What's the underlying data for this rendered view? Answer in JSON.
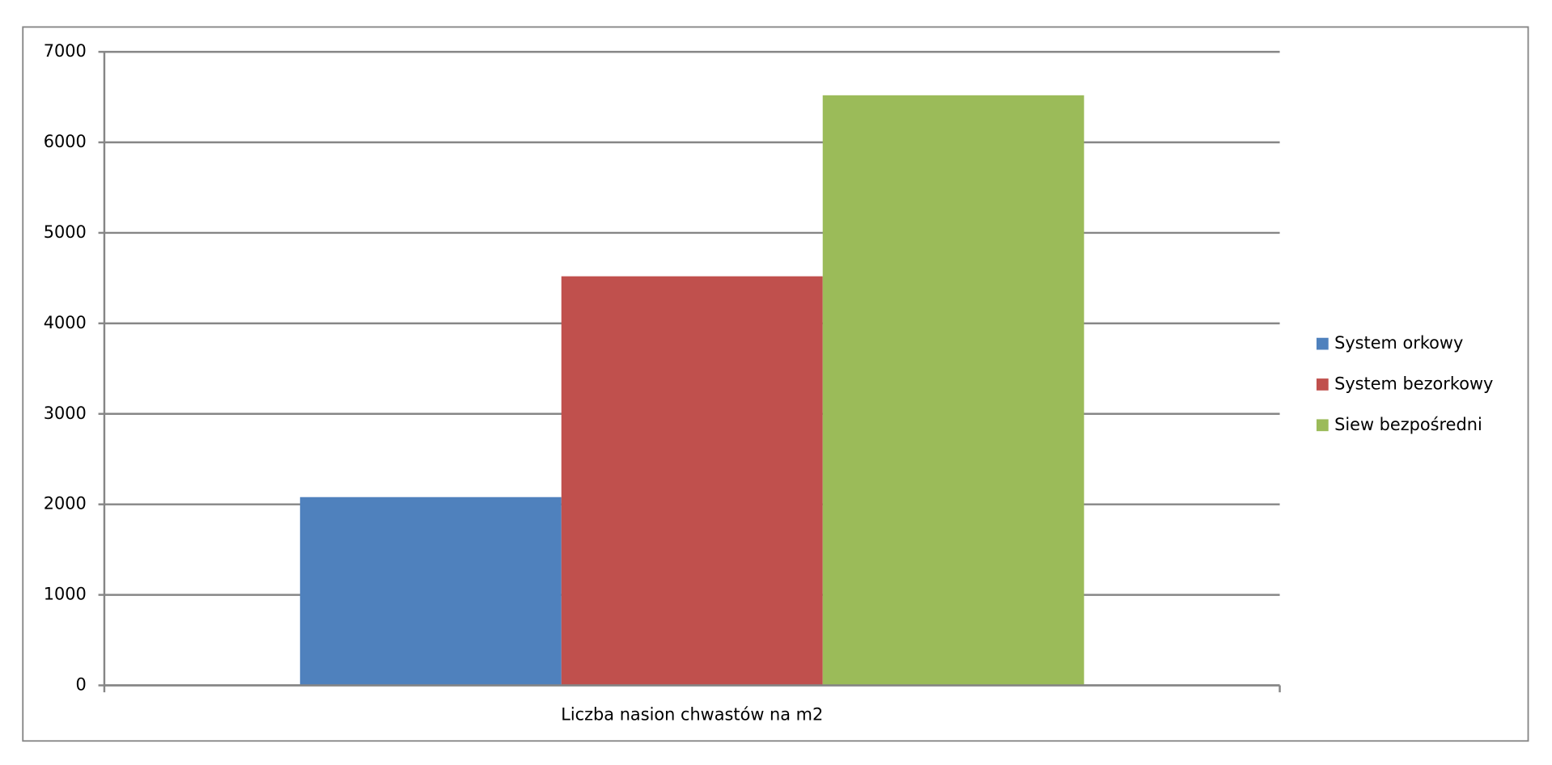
{
  "chart_data": {
    "type": "bar",
    "categories": [
      "Liczba nasion chwastów na m2"
    ],
    "series": [
      {
        "name": "System orkowy",
        "color": "#4f81bd",
        "values": [
          2080
        ]
      },
      {
        "name": "System bezorkowy",
        "color": "#c0504d",
        "values": [
          4520
        ]
      },
      {
        "name": "Siew bezpośredni",
        "color": "#9bbb59",
        "values": [
          6520
        ]
      }
    ],
    "ylim": [
      0,
      7000
    ],
    "yticks": [
      0,
      1000,
      2000,
      3000,
      4000,
      5000,
      6000,
      7000
    ],
    "grid": true,
    "legend": "right"
  }
}
